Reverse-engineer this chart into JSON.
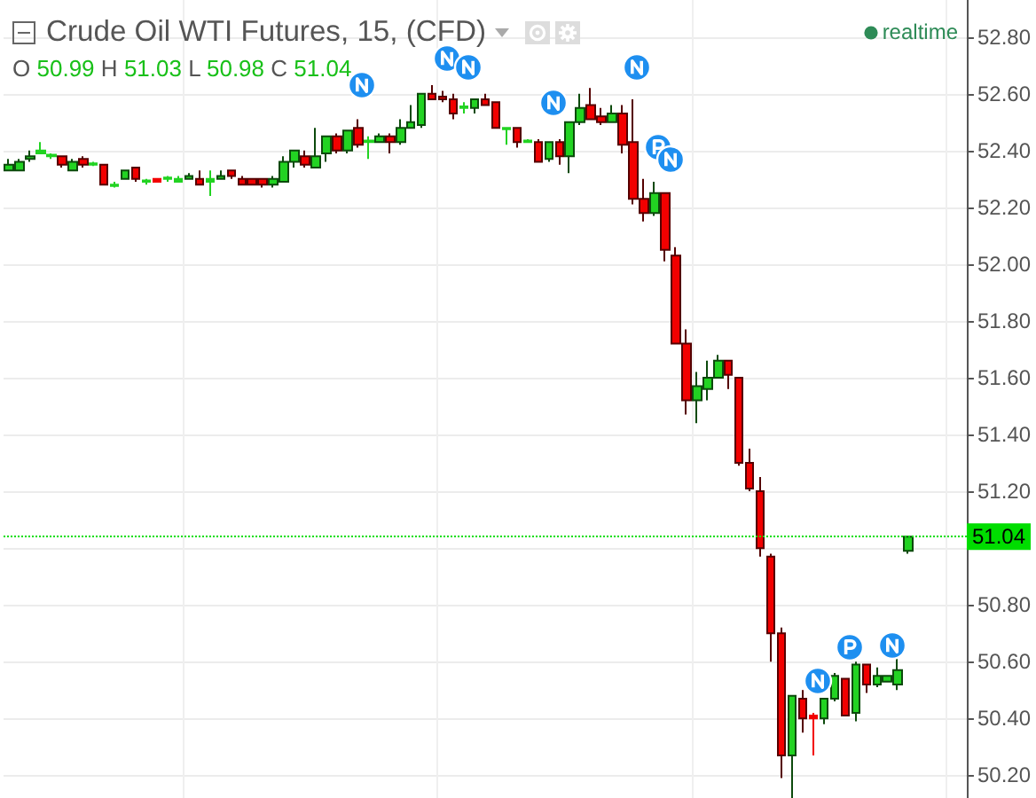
{
  "chart_data": {
    "type": "candlestick",
    "title": "Crude Oil WTI Futures, 15, (CFD)",
    "subtitle": "O 50.99 H 51.03 L 50.98 C 51.04",
    "annotations": [
      "realtime"
    ],
    "categories": [
      null,
      null,
      null,
      null,
      null,
      null,
      null,
      null,
      null,
      null,
      null,
      null,
      null,
      null,
      null,
      null,
      null,
      null,
      null,
      null,
      null,
      null,
      null,
      null,
      null,
      null,
      null,
      null,
      null,
      null,
      null,
      null,
      null,
      null,
      null,
      null,
      null,
      null,
      null,
      null,
      null,
      null,
      null,
      null,
      null,
      null,
      null,
      null,
      null,
      null,
      null,
      null,
      null,
      null,
      null,
      null,
      null,
      null,
      null,
      null,
      null,
      null,
      null,
      null,
      null,
      null,
      null,
      null,
      null,
      null,
      null,
      null,
      null,
      null,
      null,
      null,
      null,
      null,
      null,
      null,
      null,
      null,
      null,
      null,
      null,
      null,
      null,
      null,
      null,
      null,
      null
    ],
    "ohlc": [
      [
        52.33,
        52.37,
        52.33,
        52.35
      ],
      [
        52.33,
        52.37,
        52.33,
        52.36
      ],
      [
        52.37,
        52.4,
        52.36,
        52.38
      ],
      [
        52.39,
        52.43,
        52.39,
        52.4
      ],
      [
        52.38,
        52.39,
        52.37,
        52.385
      ],
      [
        52.38,
        52.38,
        52.34,
        52.35
      ],
      [
        52.33,
        52.37,
        52.33,
        52.36
      ],
      [
        52.37,
        52.38,
        52.34,
        52.35
      ],
      [
        52.35,
        52.36,
        52.345,
        52.355
      ],
      [
        52.35,
        52.35,
        52.28,
        52.28
      ],
      [
        52.275,
        52.29,
        52.27,
        52.28
      ],
      [
        52.3,
        52.33,
        52.3,
        52.33
      ],
      [
        52.34,
        52.34,
        52.29,
        52.3
      ],
      [
        52.29,
        52.3,
        52.28,
        52.295
      ],
      [
        52.3,
        52.3,
        52.29,
        52.29
      ],
      [
        52.3,
        52.31,
        52.29,
        52.305
      ],
      [
        52.29,
        52.31,
        52.29,
        52.3
      ],
      [
        52.3,
        52.32,
        52.3,
        52.31
      ],
      [
        52.3,
        52.33,
        52.28,
        52.28
      ],
      [
        52.29,
        52.33,
        52.24,
        52.3
      ],
      [
        52.3,
        52.33,
        52.3,
        52.31
      ],
      [
        52.33,
        52.33,
        52.3,
        52.31
      ],
      [
        52.3,
        52.31,
        52.28,
        52.28
      ],
      [
        52.3,
        52.3,
        52.28,
        52.28
      ],
      [
        52.3,
        52.3,
        52.27,
        52.28
      ],
      [
        52.28,
        52.31,
        52.27,
        52.3
      ],
      [
        52.29,
        52.38,
        52.29,
        52.36
      ],
      [
        52.36,
        52.4,
        52.34,
        52.4
      ],
      [
        52.38,
        52.4,
        52.34,
        52.35
      ],
      [
        52.34,
        52.48,
        52.34,
        52.38
      ],
      [
        52.39,
        52.45,
        52.36,
        52.45
      ],
      [
        52.45,
        52.46,
        52.39,
        52.4
      ],
      [
        52.4,
        52.47,
        52.39,
        52.47
      ],
      [
        52.48,
        52.51,
        52.41,
        52.42
      ],
      [
        52.43,
        52.45,
        52.37,
        52.435
      ],
      [
        52.43,
        52.46,
        52.43,
        52.45
      ],
      [
        52.45,
        52.46,
        52.39,
        52.43
      ],
      [
        52.43,
        52.51,
        52.42,
        52.48
      ],
      [
        52.48,
        52.56,
        52.48,
        52.5
      ],
      [
        52.49,
        52.6,
        52.48,
        52.6
      ],
      [
        52.6,
        52.63,
        52.58,
        52.58
      ],
      [
        52.59,
        52.61,
        52.57,
        52.58
      ],
      [
        52.58,
        52.6,
        52.51,
        52.53
      ],
      [
        52.55,
        52.57,
        52.53,
        52.555
      ],
      [
        52.55,
        52.58,
        52.53,
        52.58
      ],
      [
        52.58,
        52.6,
        52.56,
        52.56
      ],
      [
        52.57,
        52.57,
        52.48,
        52.48
      ],
      [
        52.475,
        52.48,
        52.42,
        52.48
      ],
      [
        52.48,
        52.48,
        52.41,
        52.43
      ],
      [
        52.43,
        52.44,
        52.43,
        52.435
      ],
      [
        52.43,
        52.44,
        52.36,
        52.36
      ],
      [
        52.37,
        52.43,
        52.36,
        52.43
      ],
      [
        52.43,
        52.44,
        52.35,
        52.38
      ],
      [
        52.38,
        52.5,
        52.32,
        52.5
      ],
      [
        52.5,
        52.6,
        52.49,
        52.55
      ],
      [
        52.56,
        52.62,
        52.51,
        52.51
      ],
      [
        52.52,
        52.55,
        52.49,
        52.5
      ],
      [
        52.5,
        52.56,
        52.5,
        52.53
      ],
      [
        52.53,
        52.56,
        52.39,
        52.42
      ],
      [
        52.43,
        52.58,
        52.21,
        52.23
      ],
      [
        52.23,
        52.3,
        52.15,
        52.18
      ],
      [
        52.18,
        52.29,
        52.17,
        52.25
      ],
      [
        52.25,
        52.25,
        52.01,
        52.05
      ],
      [
        52.03,
        52.06,
        51.72,
        51.72
      ],
      [
        51.72,
        51.77,
        51.47,
        51.52
      ],
      [
        51.52,
        51.62,
        51.44,
        51.57
      ],
      [
        51.56,
        51.66,
        51.52,
        51.6
      ],
      [
        51.6,
        51.68,
        51.6,
        51.66
      ],
      [
        51.66,
        51.66,
        51.56,
        51.61
      ],
      [
        51.6,
        51.6,
        51.29,
        51.3
      ],
      [
        51.3,
        51.35,
        51.2,
        51.21
      ],
      [
        51.2,
        51.25,
        50.97,
        51.0
      ],
      [
        50.97,
        50.98,
        50.6,
        50.7
      ],
      [
        50.7,
        50.72,
        50.19,
        50.27
      ],
      [
        50.27,
        50.48,
        50.12,
        50.48
      ],
      [
        50.47,
        50.5,
        50.35,
        50.4
      ],
      [
        50.41,
        50.42,
        50.27,
        50.4
      ],
      [
        50.4,
        50.47,
        50.38,
        50.47
      ],
      [
        50.47,
        50.56,
        50.46,
        50.55
      ],
      [
        50.54,
        50.54,
        50.41,
        50.41
      ],
      [
        50.42,
        50.6,
        50.39,
        50.59
      ],
      [
        50.59,
        50.59,
        50.49,
        50.52
      ],
      [
        50.52,
        50.58,
        50.51,
        50.55
      ],
      [
        50.53,
        50.55,
        50.53,
        50.55
      ],
      [
        50.52,
        50.61,
        50.5,
        50.57
      ],
      [
        50.99,
        51.04,
        50.98,
        51.04
      ],
      null,
      null,
      null,
      null,
      null
    ],
    "colors": [
      "#22d322",
      "#22d322",
      "#22d322",
      "#22d322",
      "#22d322",
      "#f20000",
      "#22d322",
      "#f20000",
      "#22d322",
      "#f20000",
      "#22d322",
      "#22d322",
      "#f20000",
      "#22d322",
      "#f20000",
      "#22d322",
      "#22d322",
      "#22d322",
      "#f20000",
      "#22d322",
      "#22d322",
      "#f20000",
      "#f20000",
      "#f20000",
      "#f20000",
      "#22d322",
      "#22d322",
      "#22d322",
      "#f20000",
      "#22d322",
      "#22d322",
      "#f20000",
      "#22d322",
      "#f20000",
      "#22d322",
      "#22d322",
      "#f20000",
      "#22d322",
      "#22d322",
      "#22d322",
      "#f20000",
      "#f20000",
      "#f20000",
      "#22d322",
      "#22d322",
      "#f20000",
      "#f20000",
      "#22d322",
      "#f20000",
      "#22d322",
      "#f20000",
      "#22d322",
      "#f20000",
      "#22d322",
      "#22d322",
      "#f20000",
      "#f20000",
      "#22d322",
      "#f20000",
      "#f20000",
      "#f20000",
      "#22d322",
      "#f20000",
      "#f20000",
      "#f20000",
      "#22d322",
      "#22d322",
      "#22d322",
      "#f20000",
      "#f20000",
      "#f20000",
      "#f20000",
      "#f20000",
      "#f20000",
      "#22d322",
      "#f20000",
      "#f20000",
      "#22d322",
      "#22d322",
      "#f20000",
      "#22d322",
      "#f20000",
      "#22d322",
      "#22d322",
      "#22d322",
      "#22d322",
      null,
      null,
      null,
      null,
      null
    ],
    "ylim": [
      50.12,
      52.93
    ],
    "yticks": [
      {
        "value": 50.2,
        "label": "50.20"
      },
      {
        "value": 50.4,
        "label": "50.40"
      },
      {
        "value": 50.6,
        "label": "50.60"
      },
      {
        "value": 50.8,
        "label": "50.80"
      },
      {
        "value": 51,
        "label": null
      },
      {
        "value": 51.2,
        "label": "51.20"
      },
      {
        "value": 51.4,
        "label": "51.40"
      },
      {
        "value": 51.6,
        "label": "51.60"
      },
      {
        "value": 51.8,
        "label": "51.80"
      },
      {
        "value": 52,
        "label": "52.00"
      },
      {
        "value": 52.2,
        "label": "52.20"
      },
      {
        "value": 52.4,
        "label": "52.40"
      },
      {
        "value": 52.6,
        "label": "52.60"
      },
      {
        "value": 52.8,
        "label": "52.80"
      }
    ],
    "ref_lines": [
      {
        "axis": "y",
        "value": 51.04,
        "label": "51.04",
        "color": "#00dd00",
        "line_style": "dotted"
      }
    ],
    "grid": true,
    "tick_labels": "y"
  }
}
